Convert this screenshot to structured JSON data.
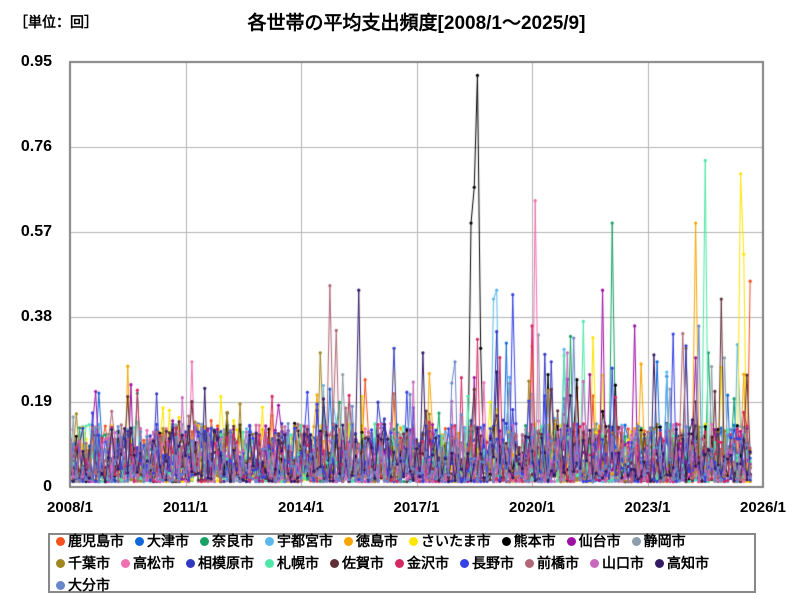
{
  "page": {
    "unit_label": "［単位：回］",
    "title": "各世帯の平均支出頻度[2008/1～2025/9]"
  },
  "chart_data": {
    "type": "line",
    "title": "各世帯の平均支出頻度[2008/1～2025/9]",
    "ylabel": "［単位：回］",
    "x_start": "2008/1",
    "x_end": "2025/9",
    "n_points": 213,
    "x_axis_total_months": 216,
    "x_ticks": [
      "2008/1",
      "2011/1",
      "2014/1",
      "2017/1",
      "2020/1",
      "2023/1",
      "2026/1"
    ],
    "x_tick_month_offsets": [
      0,
      36,
      72,
      108,
      144,
      180,
      216
    ],
    "y_ticks": [
      "0",
      "0.19",
      "0.38",
      "0.57",
      "0.76",
      "0.95"
    ],
    "ylim": [
      0,
      0.95
    ],
    "grid": true,
    "legend_position": "bottom",
    "axis_color": "#808080",
    "grid_color": "#b3b3b3",
    "noise_profile": {
      "base": 0.012,
      "band": 0.13,
      "spike_prob": 0.06,
      "spike_base": 0.1,
      "spike_growth": 0.22
    },
    "series": [
      {
        "name": "鹿児島市",
        "color": "#F4511E",
        "seed": 11,
        "peaks": {
          "92": 0.24,
          "212": 0.46
        }
      },
      {
        "name": "大津市",
        "color": "#1068D8",
        "seed": 22,
        "peaks": {
          "9": 0.21,
          "183": 0.28
        }
      },
      {
        "name": "奈良市",
        "color": "#17A163",
        "seed": 33,
        "peaks": {
          "169": 0.59,
          "199": 0.3
        }
      },
      {
        "name": "宇都宮市",
        "color": "#5BB8EA",
        "seed": 44,
        "peaks": {
          "132": 0.42,
          "133": 0.44
        }
      },
      {
        "name": "徳島市",
        "color": "#F7A600",
        "seed": 55,
        "peaks": {
          "18": 0.27,
          "195": 0.59
        }
      },
      {
        "name": "さいたま市",
        "color": "#FFE500",
        "seed": 66,
        "peaks": {
          "101": 0.31,
          "209": 0.7,
          "210": 0.52
        }
      },
      {
        "name": "熊本市",
        "color": "#000000",
        "seed": 77,
        "peaks": {
          "125": 0.59,
          "126": 0.67,
          "127": 0.92,
          "128": 0.31
        }
      },
      {
        "name": "仙台市",
        "color": "#9C10A4",
        "seed": 88,
        "peaks": {
          "166": 0.44,
          "176": 0.36
        }
      },
      {
        "name": "静岡市",
        "color": "#8E9DAD",
        "seed": 99,
        "peaks": {
          "146": 0.34
        }
      },
      {
        "name": "千葉市",
        "color": "#A08520",
        "seed": 110,
        "peaks": {
          "78": 0.3,
          "192": 0.31
        }
      },
      {
        "name": "高松市",
        "color": "#F06FB2",
        "seed": 121,
        "peaks": {
          "38": 0.28,
          "145": 0.64
        }
      },
      {
        "name": "相模原市",
        "color": "#3338C0",
        "seed": 132,
        "peaks": {
          "150": 0.28
        }
      },
      {
        "name": "札幌市",
        "color": "#4FE8A8",
        "seed": 143,
        "peaks": {
          "160": 0.37,
          "198": 0.73
        }
      },
      {
        "name": "佐賀市",
        "color": "#603038",
        "seed": 154,
        "peaks": {
          "203": 0.42
        }
      },
      {
        "name": "金沢市",
        "color": "#D42A62",
        "seed": 165,
        "peaks": {
          "127": 0.33,
          "144": 0.36
        }
      },
      {
        "name": "長野市",
        "color": "#3642E6",
        "seed": 176,
        "peaks": {
          "101": 0.31,
          "138": 0.43
        }
      },
      {
        "name": "前橋市",
        "color": "#B06876",
        "seed": 187,
        "peaks": {
          "81": 0.45,
          "83": 0.35
        }
      },
      {
        "name": "山口市",
        "color": "#C768BE",
        "seed": 198,
        "peaks": {
          "155": 0.3
        }
      },
      {
        "name": "高知市",
        "color": "#321A64",
        "seed": 209,
        "peaks": {
          "90": 0.44,
          "110": 0.3
        }
      },
      {
        "name": "大分市",
        "color": "#6986C8",
        "seed": 220,
        "peaks": {
          "120": 0.28
        }
      }
    ]
  }
}
